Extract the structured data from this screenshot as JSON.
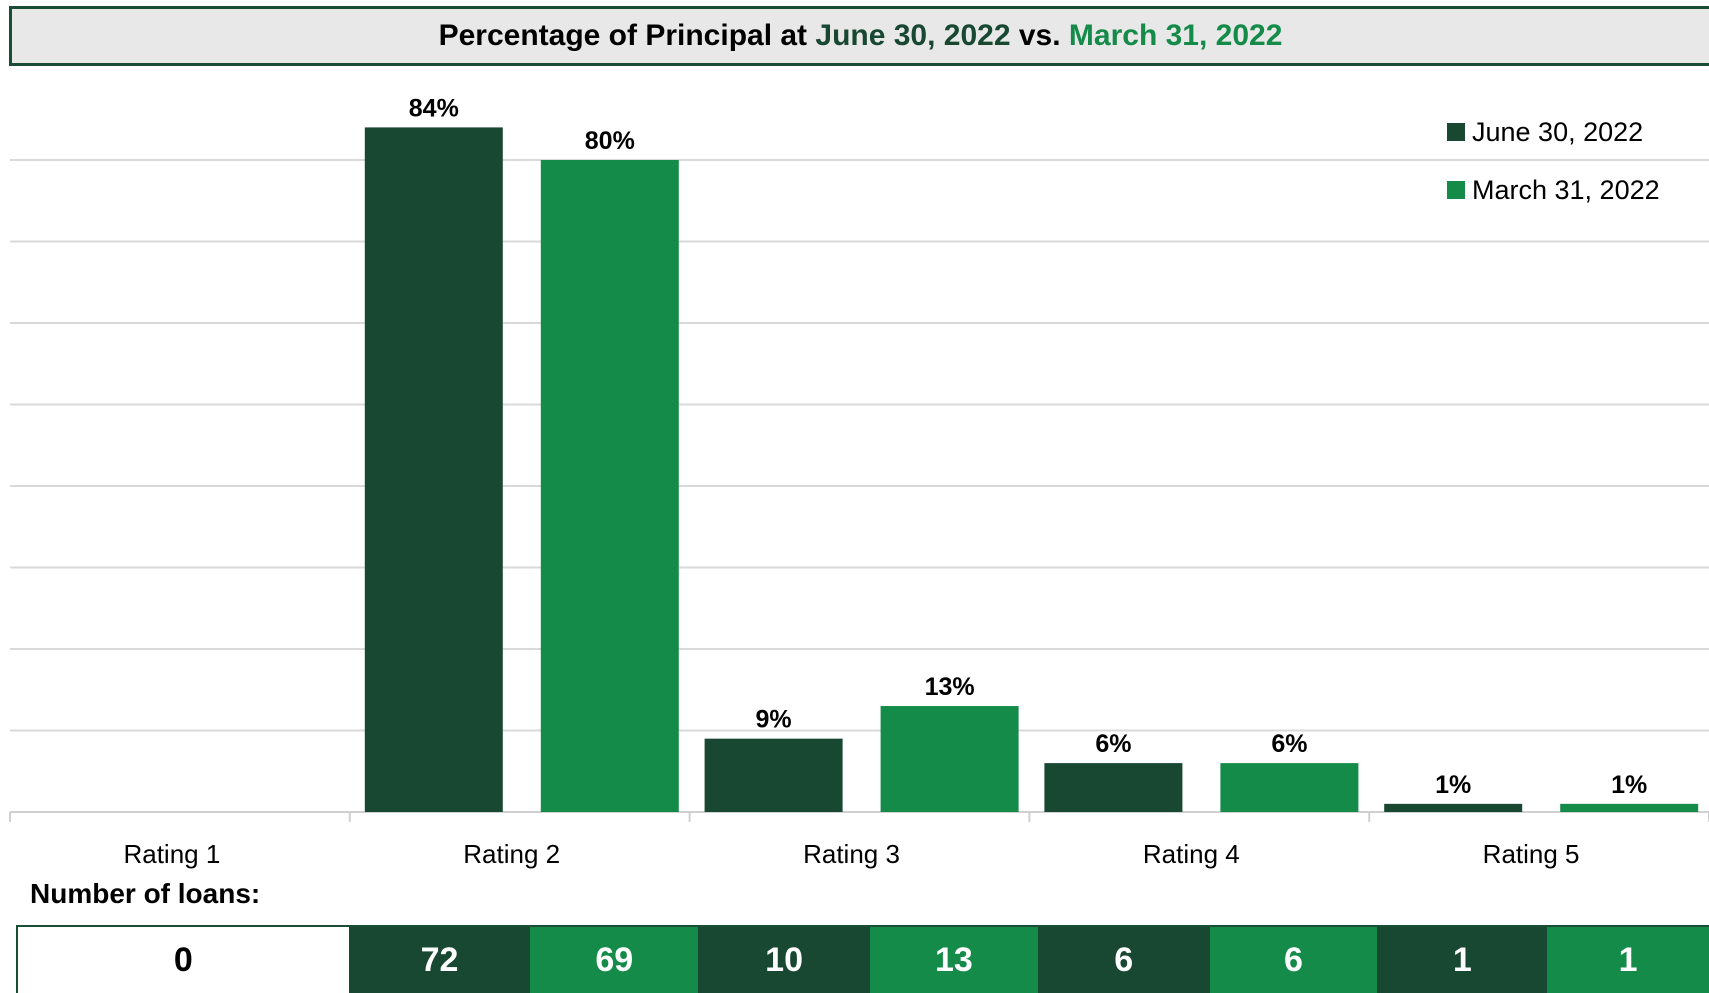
{
  "title": {
    "prefix": "Percentage of Principal at ",
    "date1": "June 30, 2022",
    "mid": " vs. ",
    "date2": "March 31, 2022"
  },
  "colors": {
    "june": "#184732",
    "march": "#158b4a",
    "grid": "#d9d9d9",
    "axis": "#d0d0d0"
  },
  "chart_data": {
    "type": "bar",
    "categories": [
      "Rating 1",
      "Rating 2",
      "Rating 3",
      "Rating 4",
      "Rating 5"
    ],
    "series": [
      {
        "name": "June 30, 2022",
        "values": [
          null,
          84,
          9,
          6,
          1
        ],
        "labels": [
          "",
          "84%",
          "9%",
          "6%",
          "1%"
        ]
      },
      {
        "name": "March 31, 2022",
        "values": [
          null,
          80,
          13,
          6,
          1
        ],
        "labels": [
          "",
          "80%",
          "13%",
          "6%",
          "1%"
        ]
      }
    ],
    "ylim": [
      0,
      80
    ],
    "grid": true,
    "legend_position": "top-right",
    "xlabel": "",
    "ylabel": ""
  },
  "loans": {
    "label": "Number of loans:",
    "cells": [
      {
        "value": "0",
        "series": "blank"
      },
      {
        "value": "72",
        "series": "june"
      },
      {
        "value": "69",
        "series": "march"
      },
      {
        "value": "10",
        "series": "june"
      },
      {
        "value": "13",
        "series": "march"
      },
      {
        "value": "6",
        "series": "june"
      },
      {
        "value": "6",
        "series": "march"
      },
      {
        "value": "1",
        "series": "june"
      },
      {
        "value": "1",
        "series": "march"
      }
    ]
  }
}
